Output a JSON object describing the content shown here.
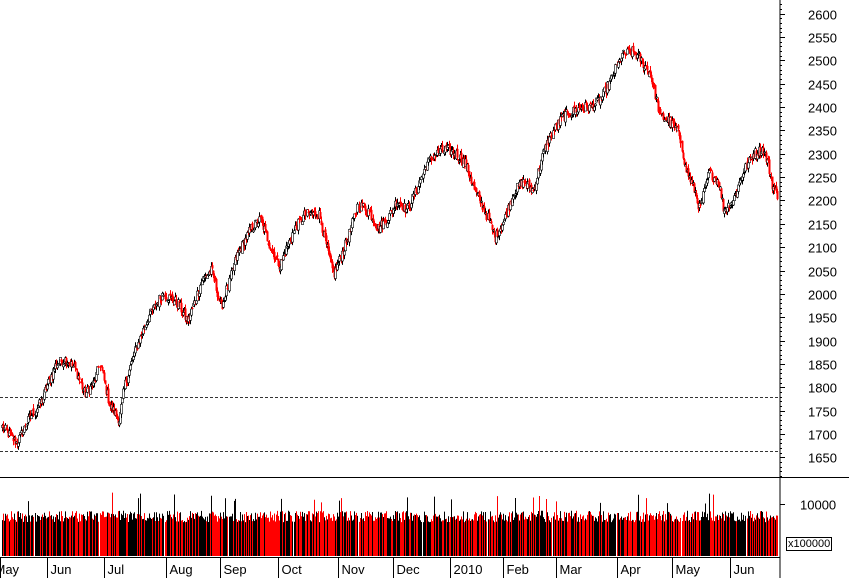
{
  "chart_data": {
    "type": "candlestick",
    "title": "",
    "price_axis": {
      "ticks": [
        1650,
        1700,
        1750,
        1800,
        1850,
        1900,
        1950,
        2000,
        2050,
        2100,
        2150,
        2200,
        2250,
        2300,
        2350,
        2400,
        2450,
        2500,
        2550,
        2600
      ],
      "range": [
        1610,
        2625
      ]
    },
    "volume_axis": {
      "ticks": [
        10000
      ],
      "unit_label": "x100000",
      "range": [
        0,
        14800
      ]
    },
    "months": [
      "May",
      "Jun",
      "Jul",
      "Aug",
      "Sep",
      "Oct",
      "Nov",
      "Dec",
      "2010",
      "Feb",
      "Mar",
      "Apr",
      "May",
      "Jun"
    ],
    "reference_lines": [
      1663,
      1780
    ],
    "anchors": [
      {
        "t": 0,
        "v": 1715
      },
      {
        "t": 3,
        "v": 1680
      },
      {
        "t": 6,
        "v": 1740
      },
      {
        "t": 8,
        "v": 1770
      },
      {
        "t": 9,
        "v": 1800
      },
      {
        "t": 11,
        "v": 1850
      },
      {
        "t": 13,
        "v": 1860
      },
      {
        "t": 15,
        "v": 1840
      },
      {
        "t": 17,
        "v": 1785
      },
      {
        "t": 19,
        "v": 1810
      },
      {
        "t": 20,
        "v": 1850
      },
      {
        "t": 22,
        "v": 1760
      },
      {
        "t": 24,
        "v": 1730
      },
      {
        "t": 25,
        "v": 1800
      },
      {
        "t": 27,
        "v": 1870
      },
      {
        "t": 30,
        "v": 1950
      },
      {
        "t": 33,
        "v": 2000
      },
      {
        "t": 36,
        "v": 1980
      },
      {
        "t": 38,
        "v": 1940
      },
      {
        "t": 41,
        "v": 2030
      },
      {
        "t": 43,
        "v": 2050
      },
      {
        "t": 45,
        "v": 1970
      },
      {
        "t": 48,
        "v": 2080
      },
      {
        "t": 51,
        "v": 2140
      },
      {
        "t": 53,
        "v": 2160
      },
      {
        "t": 55,
        "v": 2100
      },
      {
        "t": 57,
        "v": 2060
      },
      {
        "t": 60,
        "v": 2140
      },
      {
        "t": 62,
        "v": 2170
      },
      {
        "t": 65,
        "v": 2170
      },
      {
        "t": 67,
        "v": 2080
      },
      {
        "t": 68,
        "v": 2040
      },
      {
        "t": 71,
        "v": 2120
      },
      {
        "t": 73,
        "v": 2190
      },
      {
        "t": 75,
        "v": 2180
      },
      {
        "t": 77,
        "v": 2140
      },
      {
        "t": 79,
        "v": 2160
      },
      {
        "t": 81,
        "v": 2200
      },
      {
        "t": 83,
        "v": 2180
      },
      {
        "t": 85,
        "v": 2220
      },
      {
        "t": 87,
        "v": 2280
      },
      {
        "t": 89,
        "v": 2300
      },
      {
        "t": 91,
        "v": 2310
      },
      {
        "t": 93,
        "v": 2300
      },
      {
        "t": 95,
        "v": 2280
      },
      {
        "t": 97,
        "v": 2220
      },
      {
        "t": 99,
        "v": 2180
      },
      {
        "t": 101,
        "v": 2120
      },
      {
        "t": 103,
        "v": 2160
      },
      {
        "t": 105,
        "v": 2220
      },
      {
        "t": 107,
        "v": 2240
      },
      {
        "t": 109,
        "v": 2220
      },
      {
        "t": 111,
        "v": 2300
      },
      {
        "t": 113,
        "v": 2350
      },
      {
        "t": 115,
        "v": 2380
      },
      {
        "t": 117,
        "v": 2390
      },
      {
        "t": 119,
        "v": 2400
      },
      {
        "t": 121,
        "v": 2400
      },
      {
        "t": 123,
        "v": 2420
      },
      {
        "t": 125,
        "v": 2460
      },
      {
        "t": 127,
        "v": 2510
      },
      {
        "t": 129,
        "v": 2520
      },
      {
        "t": 131,
        "v": 2500
      },
      {
        "t": 133,
        "v": 2470
      },
      {
        "t": 135,
        "v": 2380
      },
      {
        "t": 137,
        "v": 2370
      },
      {
        "t": 139,
        "v": 2340
      },
      {
        "t": 140,
        "v": 2270
      },
      {
        "t": 142,
        "v": 2220
      },
      {
        "t": 143,
        "v": 2180
      },
      {
        "t": 145,
        "v": 2260
      },
      {
        "t": 147,
        "v": 2240
      },
      {
        "t": 148,
        "v": 2180
      },
      {
        "t": 150,
        "v": 2200
      },
      {
        "t": 152,
        "v": 2260
      },
      {
        "t": 154,
        "v": 2300
      },
      {
        "t": 156,
        "v": 2310
      },
      {
        "t": 157,
        "v": 2280
      },
      {
        "t": 158,
        "v": 2230
      },
      {
        "t": 159,
        "v": 2210
      }
    ],
    "legend": "none"
  }
}
